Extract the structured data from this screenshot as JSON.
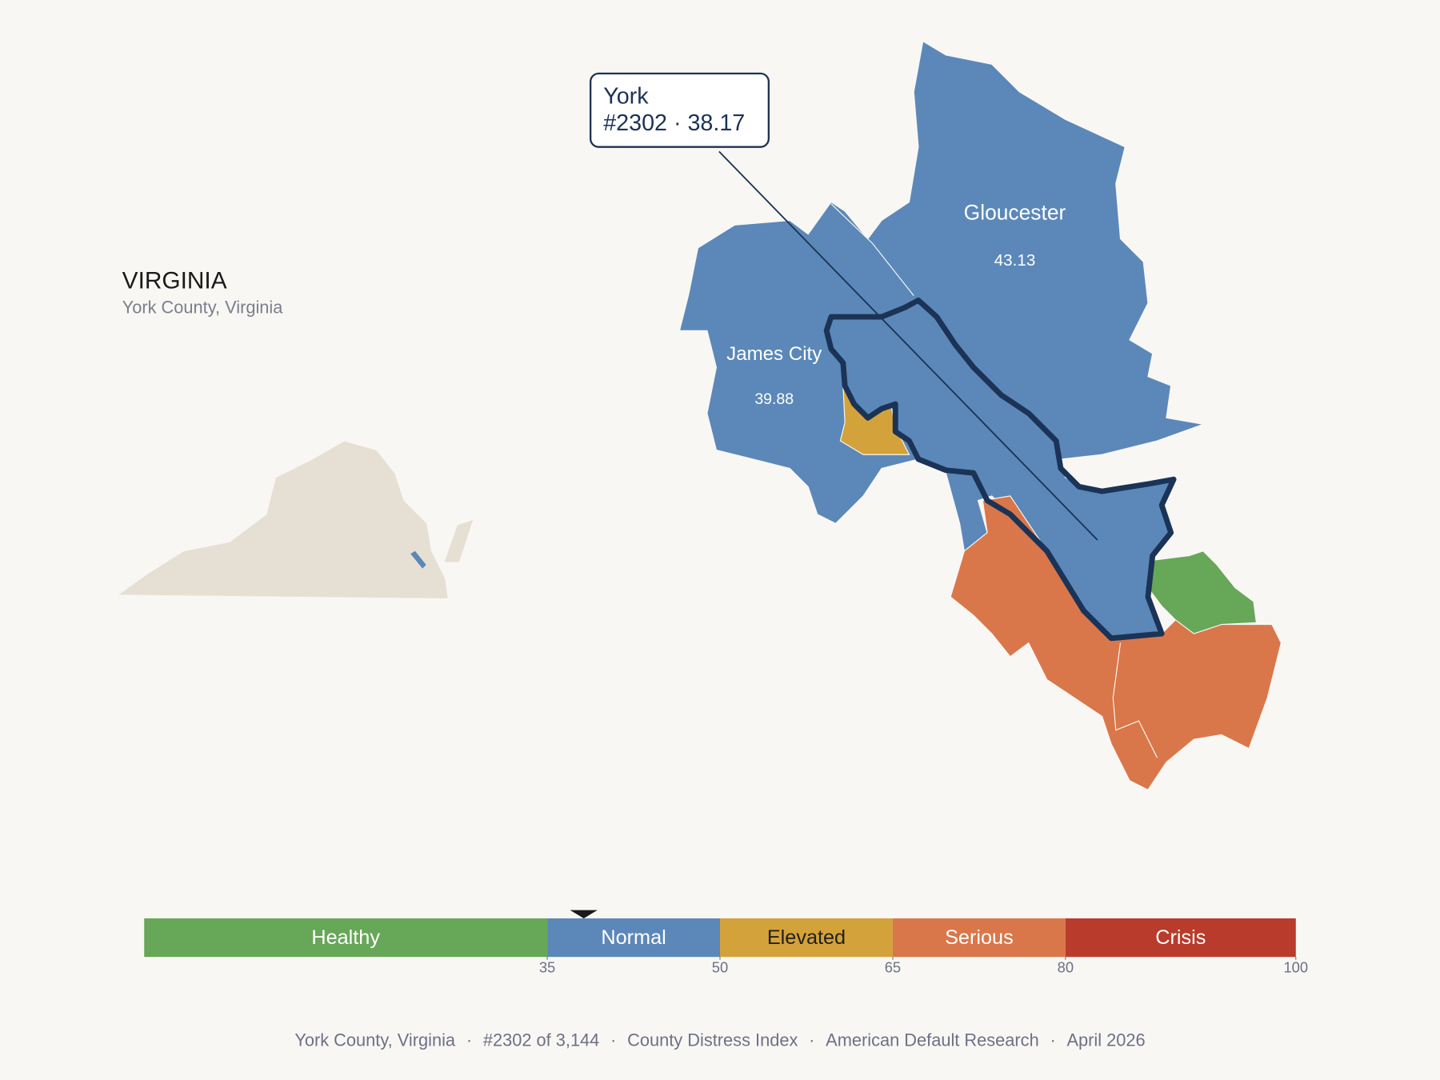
{
  "header": {
    "title": "VIRGINIA",
    "subtitle": "York County, Virginia"
  },
  "callout": {
    "name": "York",
    "label": "#2302 · 38.17",
    "value": 38.17
  },
  "counties": [
    {
      "name": "Gloucester",
      "value": 43.13
    },
    {
      "name": "James City",
      "value": 39.88
    }
  ],
  "scale": {
    "range": [
      0,
      100
    ],
    "segments": [
      {
        "label": "Healthy",
        "from": 0,
        "to": 35,
        "color": "#67a758",
        "text_color": "#ffffff"
      },
      {
        "label": "Normal",
        "from": 35,
        "to": 50,
        "color": "#5b88b8",
        "text_color": "#ffffff"
      },
      {
        "label": "Elevated",
        "from": 50,
        "to": 65,
        "color": "#d4a23a",
        "text_color": "#1f1f1f"
      },
      {
        "label": "Serious",
        "from": 65,
        "to": 80,
        "color": "#d9774a",
        "text_color": "#ffffff"
      },
      {
        "label": "Crisis",
        "from": 80,
        "to": 100,
        "color": "#b93b2c",
        "text_color": "#ffffff"
      }
    ],
    "ticks": [
      35,
      50,
      65,
      80,
      100
    ]
  },
  "footer": {
    "items": [
      "York County, Virginia",
      "#2302 of 3,144",
      "County Distress Index",
      "American Default Research",
      "April 2026"
    ],
    "separator": "·"
  }
}
